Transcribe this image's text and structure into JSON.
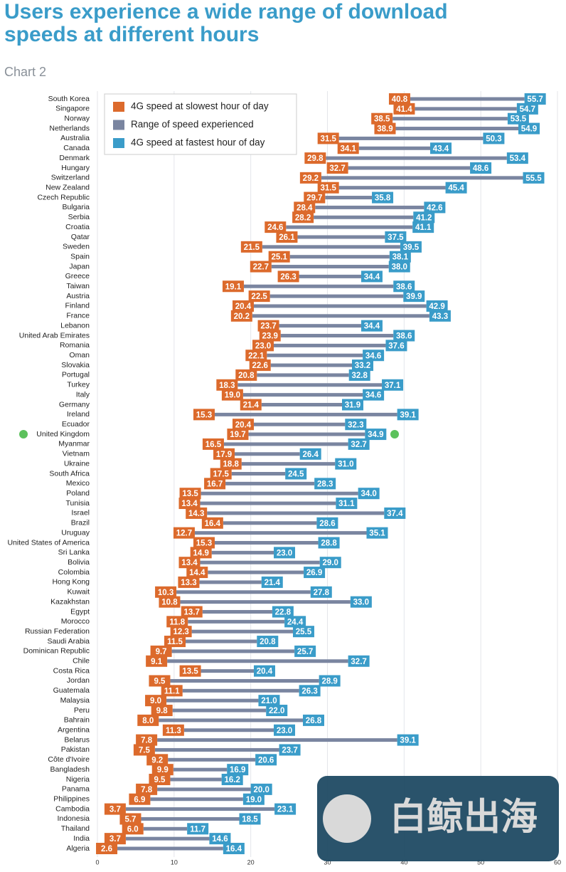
{
  "chart_data": {
    "type": "dumbbell",
    "title": "Users experience a wide range of download speeds at different hours",
    "subtitle": "Chart 2",
    "watermark": "白鲸出海",
    "categories": [
      "South Korea",
      "Singapore",
      "Norway",
      "Netherlands",
      "Australia",
      "Canada",
      "Denmark",
      "Hungary",
      "Switzerland",
      "New Zealand",
      "Czech Republic",
      "Bulgaria",
      "Serbia",
      "Croatia",
      "Qatar",
      "Sweden",
      "Spain",
      "Japan",
      "Greece",
      "Taiwan",
      "Austria",
      "Finland",
      "France",
      "Lebanon",
      "United Arab Emirates",
      "Romania",
      "Oman",
      "Slovakia",
      "Portugal",
      "Turkey",
      "Italy",
      "Germany",
      "Ireland",
      "Ecuador",
      "United Kingdom",
      "Myanmar",
      "Vietnam",
      "Ukraine",
      "South Africa",
      "Mexico",
      "Poland",
      "Tunisia",
      "Israel",
      "Brazil",
      "Uruguay",
      "United States of America",
      "Sri Lanka",
      "Bolivia",
      "Colombia",
      "Hong Kong",
      "Kuwait",
      "Kazakhstan",
      "Egypt",
      "Morocco",
      "Russian Federation",
      "Saudi Arabia",
      "Dominican Republic",
      "Chile",
      "Costa Rica",
      "Jordan",
      "Guatemala",
      "Malaysia",
      "Peru",
      "Bahrain",
      "Argentina",
      "Belarus",
      "Pakistan",
      "Côte d'Ivoire",
      "Bangladesh",
      "Nigeria",
      "Panama",
      "Philippines",
      "Cambodia",
      "Indonesia",
      "Thailand",
      "India",
      "Algeria"
    ],
    "series": [
      {
        "name": "4G speed at slowest hour of day",
        "color": "#dc6a2c",
        "values": [
          40.8,
          41.4,
          38.5,
          38.9,
          31.5,
          34.1,
          29.8,
          32.7,
          29.2,
          31.5,
          29.7,
          28.4,
          28.2,
          24.6,
          26.1,
          21.5,
          25.1,
          22.7,
          26.3,
          19.1,
          22.5,
          20.4,
          20.2,
          23.7,
          23.9,
          23.0,
          22.1,
          22.6,
          20.8,
          18.3,
          19.0,
          21.4,
          15.3,
          20.4,
          19.7,
          16.5,
          17.9,
          18.8,
          17.5,
          16.7,
          13.5,
          13.4,
          14.3,
          16.4,
          12.7,
          15.3,
          14.9,
          13.4,
          14.4,
          13.3,
          10.3,
          10.8,
          13.7,
          11.8,
          12.3,
          11.5,
          9.7,
          9.1,
          13.5,
          9.5,
          11.1,
          9.0,
          9.8,
          8.0,
          11.3,
          7.8,
          7.5,
          9.2,
          9.9,
          9.5,
          7.8,
          6.9,
          3.7,
          5.7,
          6.0,
          3.7,
          2.6
        ],
        "value_labels": [
          "40.8",
          "41.4",
          "38.5",
          "38.9",
          "31.5",
          "34.1",
          "29.8",
          "32.7",
          "29.2",
          "31.5",
          "29.7",
          "28.4",
          "28.2",
          "24.6",
          "26.1",
          "21.5",
          "25.1",
          "22.7",
          "26.3",
          "19.1",
          "22.5",
          "20.4",
          "20.2",
          "23.7",
          "23.9",
          "23.0",
          "22.1",
          "22.6",
          "20.8",
          "18.3",
          "19.0",
          "21.4",
          "15.3",
          "20.4",
          "19.7",
          "16.5",
          "17.9",
          "18.8",
          "17.5",
          "16.7",
          "13.5",
          "13.4",
          "14.3",
          "16.4",
          "12.7",
          "15.3",
          "14.9",
          "13.4",
          "14.4",
          "13.3",
          "10.3",
          "10.8",
          "13.7",
          "11.8",
          "12.3",
          "11.5",
          "9.7",
          "9.1",
          "13.5",
          "9.5",
          "11.1",
          "9.0",
          "9.8",
          "8.0",
          "11.3",
          "7.8",
          "7.5",
          "9.2",
          "9.9",
          "9.5",
          "7.8",
          "6.9",
          "3.7",
          "5.7",
          "6.0",
          "3.7",
          "2.6"
        ]
      },
      {
        "name": "4G speed at fastest hour of day",
        "color": "#3a9cc9",
        "values": [
          55.7,
          54.7,
          53.5,
          54.9,
          50.3,
          43.4,
          53.4,
          48.6,
          55.5,
          45.4,
          35.8,
          42.6,
          41.2,
          41.1,
          37.5,
          39.5,
          38.1,
          38.0,
          34.4,
          38.6,
          39.9,
          42.9,
          43.3,
          34.4,
          38.6,
          37.6,
          34.6,
          33.2,
          32.8,
          37.1,
          34.6,
          31.9,
          39.1,
          32.3,
          34.9,
          32.7,
          26.4,
          31.0,
          24.5,
          28.3,
          34.0,
          31.1,
          37.4,
          28.6,
          35.1,
          28.8,
          23.0,
          29.0,
          26.9,
          21.4,
          27.8,
          33.0,
          22.8,
          24.4,
          25.5,
          20.8,
          25.7,
          32.7,
          20.4,
          28.9,
          26.3,
          21.0,
          22.0,
          26.8,
          23.0,
          39.1,
          23.7,
          20.6,
          16.9,
          16.2,
          20.0,
          19.0,
          23.1,
          18.5,
          11.7,
          14.6,
          16.4
        ],
        "value_labels": [
          "55.7",
          "54.7",
          "53.5",
          "54.9",
          "50.3",
          "43.4",
          "53.4",
          "48.6",
          "55.5",
          "45.4",
          "35.8",
          "42.6",
          "41.2",
          "41.1",
          "37.5",
          "39.5",
          "38.1",
          "38.0",
          "34.4",
          "38.6",
          "39.9",
          "42.9",
          "43.3",
          "34.4",
          "38.6",
          "37.6",
          "34.6",
          "33.2",
          "32.8",
          "37.1",
          "34.6",
          "31.9",
          "39.1",
          "32.3",
          "34.9",
          "32.7",
          "26.4",
          "31.0",
          "24.5",
          "28.3",
          "34.0",
          "31.1",
          "37.4",
          "28.6",
          "35.1",
          "28.8",
          "23.0",
          "29.0",
          "26.9",
          "21.4",
          "27.8",
          "33.0",
          "22.8",
          "24.4",
          "25.5",
          "20.8",
          "25.7",
          "32.7",
          "20.4",
          "28.9",
          "26.3",
          "21.0",
          "22.0",
          "26.8",
          "23.0",
          "39.1",
          "23.7",
          "20.6",
          "16.9",
          "16.2",
          "20.0",
          "19.0",
          "23.1",
          "18.5",
          "11.7",
          "14.6",
          "16.4"
        ]
      }
    ],
    "range": {
      "name": "Range of speed experienced",
      "color": "#7a85a0"
    },
    "xlim": [
      0,
      60
    ],
    "xticks": [
      0,
      10,
      20,
      30,
      40,
      50,
      60
    ],
    "grid": true,
    "legend": "top-left"
  }
}
